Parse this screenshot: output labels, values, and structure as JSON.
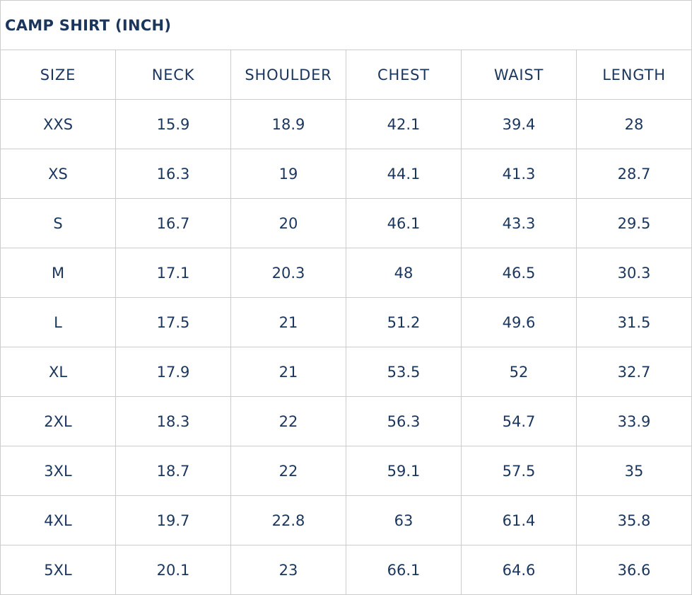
{
  "title": "CAMP SHIRT (INCH)",
  "colors": {
    "text": "#1b365d",
    "border": "#cccccc"
  },
  "columns": [
    "SIZE",
    "NECK",
    "SHOULDER",
    "CHEST",
    "WAIST",
    "LENGTH"
  ],
  "rows": [
    [
      "XXS",
      "15.9",
      "18.9",
      "42.1",
      "39.4",
      "28"
    ],
    [
      "XS",
      "16.3",
      "19",
      "44.1",
      "41.3",
      "28.7"
    ],
    [
      "S",
      "16.7",
      "20",
      "46.1",
      "43.3",
      "29.5"
    ],
    [
      "M",
      "17.1",
      "20.3",
      "48",
      "46.5",
      "30.3"
    ],
    [
      "L",
      "17.5",
      "21",
      "51.2",
      "49.6",
      "31.5"
    ],
    [
      "XL",
      "17.9",
      "21",
      "53.5",
      "52",
      "32.7"
    ],
    [
      "2XL",
      "18.3",
      "22",
      "56.3",
      "54.7",
      "33.9"
    ],
    [
      "3XL",
      "18.7",
      "22",
      "59.1",
      "57.5",
      "35"
    ],
    [
      "4XL",
      "19.7",
      "22.8",
      "63",
      "61.4",
      "35.8"
    ],
    [
      "5XL",
      "20.1",
      "23",
      "66.1",
      "64.6",
      "36.6"
    ]
  ]
}
